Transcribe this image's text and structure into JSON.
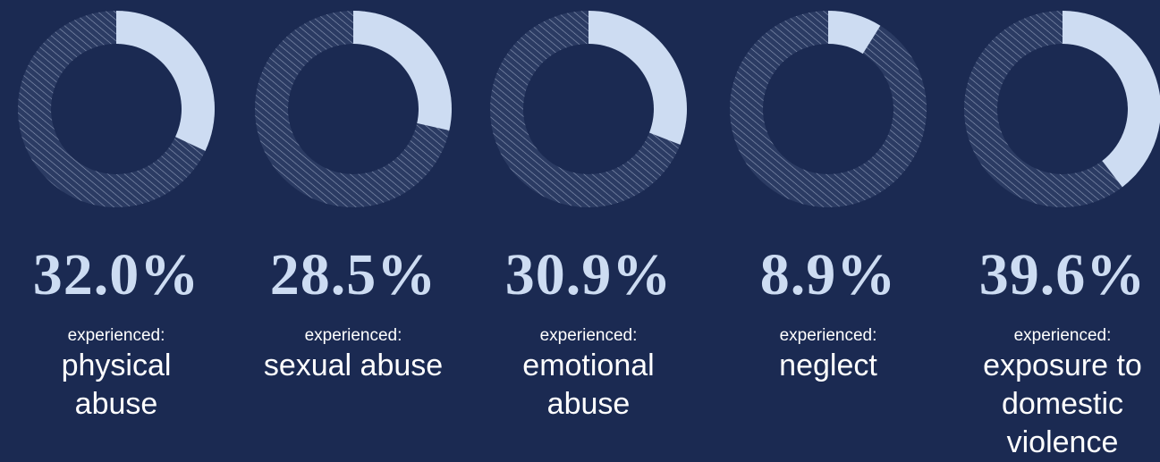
{
  "chart_data": [
    {
      "type": "donut",
      "values": [
        32.0
      ],
      "value_labels": [
        "32.0%"
      ],
      "subtitle": "experienced:",
      "categories": [
        "physical abuse"
      ],
      "color": "#cddcf2"
    },
    {
      "type": "donut",
      "values": [
        28.5
      ],
      "value_labels": [
        "28.5%"
      ],
      "subtitle": "experienced:",
      "categories": [
        "sexual abuse"
      ],
      "color": "#cddcf2"
    },
    {
      "type": "donut",
      "values": [
        30.9
      ],
      "value_labels": [
        "30.9%"
      ],
      "subtitle": "experienced:",
      "categories": [
        "emotional abuse"
      ],
      "color": "#cddcf2"
    },
    {
      "type": "donut",
      "values": [
        8.9
      ],
      "value_labels": [
        "8.9%"
      ],
      "subtitle": "experienced:",
      "categories": [
        "neglect"
      ],
      "color": "#cddcf2"
    },
    {
      "type": "donut",
      "values": [
        39.6
      ],
      "value_labels": [
        "39.6%"
      ],
      "subtitle": "experienced:",
      "categories": [
        "exposure to domestic violence"
      ],
      "color": "#cddcf2"
    }
  ]
}
